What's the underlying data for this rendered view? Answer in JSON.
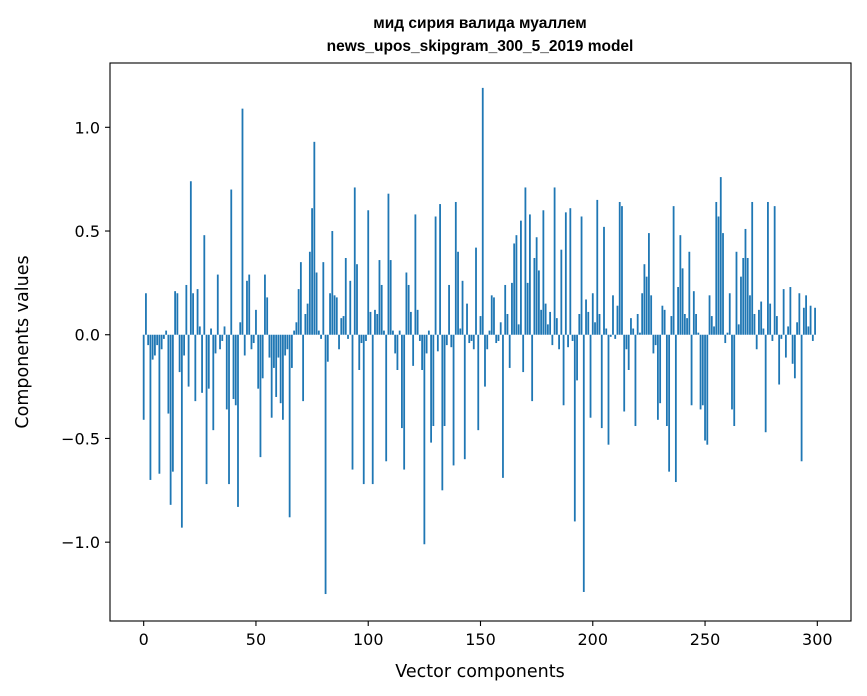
{
  "chart_data": {
    "type": "bar",
    "title_lines": [
      "мид сирия валида муаллем",
      "news_upos_skipgram_300_5_2019 model"
    ],
    "xlabel": "Vector components",
    "ylabel": "Components values",
    "xlim": [
      -15,
      315
    ],
    "ylim": [
      -1.38,
      1.31
    ],
    "xticks": [
      0,
      50,
      100,
      150,
      200,
      250,
      300
    ],
    "xtick_labels": [
      "0",
      "50",
      "100",
      "150",
      "200",
      "250",
      "300"
    ],
    "yticks": [
      -1.0,
      -0.5,
      0.0,
      0.5,
      1.0
    ],
    "ytick_labels": [
      "−1.0",
      "−0.5",
      "0.0",
      "0.5",
      "1.0"
    ],
    "bar_color": "#1f77b4",
    "bar_width": 0.8,
    "values": [
      -0.41,
      0.2,
      -0.05,
      -0.7,
      -0.12,
      -0.1,
      -0.05,
      -0.67,
      -0.07,
      -0.02,
      0.02,
      -0.38,
      -0.82,
      -0.66,
      0.21,
      0.2,
      -0.18,
      -0.93,
      -0.1,
      0.24,
      -0.25,
      0.74,
      0.2,
      -0.32,
      0.22,
      0.04,
      -0.28,
      0.48,
      -0.72,
      -0.26,
      0.03,
      -0.46,
      -0.09,
      0.29,
      -0.07,
      -0.03,
      0.04,
      -0.36,
      -0.72,
      0.7,
      -0.31,
      -0.34,
      -0.83,
      0.06,
      1.09,
      -0.1,
      0.26,
      0.29,
      -0.07,
      -0.04,
      0.12,
      -0.26,
      -0.59,
      -0.21,
      0.29,
      0.18,
      -0.11,
      -0.4,
      -0.16,
      -0.3,
      -0.11,
      -0.33,
      -0.41,
      -0.1,
      -0.07,
      -0.88,
      -0.16,
      0.02,
      0.06,
      0.22,
      0.35,
      -0.32,
      0.1,
      0.15,
      0.4,
      0.61,
      0.93,
      0.3,
      0.02,
      -0.02,
      0.35,
      -1.25,
      -0.13,
      0.2,
      0.5,
      0.19,
      0.18,
      -0.07,
      0.08,
      0.09,
      0.37,
      -0.02,
      0.26,
      -0.65,
      0.71,
      0.34,
      -0.17,
      -0.04,
      -0.72,
      -0.03,
      0.6,
      0.11,
      -0.72,
      0.12,
      0.1,
      0.36,
      0.24,
      0.02,
      -0.61,
      0.68,
      0.36,
      0.02,
      -0.09,
      -0.17,
      0.02,
      -0.45,
      -0.65,
      0.3,
      0.24,
      0.11,
      -0.15,
      0.58,
      0.12,
      -0.03,
      -0.17,
      -1.01,
      -0.09,
      0.02,
      -0.52,
      -0.44,
      0.57,
      -0.08,
      0.63,
      -0.75,
      -0.44,
      -0.05,
      0.24,
      -0.06,
      -0.63,
      0.64,
      0.4,
      0.03,
      0.26,
      -0.6,
      0.15,
      -0.04,
      -0.03,
      -0.07,
      0.42,
      -0.46,
      0.09,
      1.19,
      -0.25,
      -0.07,
      0.02,
      0.19,
      0.18,
      -0.04,
      -0.03,
      0.06,
      -0.69,
      0.24,
      0.1,
      -0.16,
      0.25,
      0.44,
      0.48,
      0.05,
      0.55,
      -0.18,
      0.71,
      0.25,
      0.58,
      -0.32,
      0.37,
      0.47,
      0.31,
      0.12,
      0.6,
      0.15,
      0.05,
      0.11,
      -0.05,
      0.71,
      0.08,
      -0.07,
      0.41,
      -0.34,
      0.59,
      -0.06,
      0.61,
      -0.03,
      -0.9,
      -0.22,
      0.1,
      0.57,
      -1.24,
      0.17,
      0.11,
      -0.4,
      0.2,
      0.06,
      0.65,
      0.1,
      -0.45,
      0.52,
      0.03,
      -0.53,
      -0.01,
      0.19,
      -0.02,
      0.14,
      0.64,
      0.62,
      -0.37,
      -0.07,
      -0.17,
      0.08,
      0.03,
      -0.44,
      0.1,
      0.01,
      0.2,
      0.34,
      0.28,
      0.49,
      0.19,
      -0.09,
      -0.05,
      -0.41,
      -0.33,
      0.14,
      0.12,
      -0.44,
      -0.66,
      0.09,
      0.62,
      -0.71,
      0.23,
      0.48,
      0.32,
      0.1,
      0.08,
      0.4,
      -0.34,
      0.21,
      0.1,
      0.01,
      -0.36,
      -0.34,
      -0.51,
      -0.53,
      0.19,
      0.09,
      0.04,
      0.64,
      0.57,
      0.76,
      0.49,
      -0.04,
      0.01,
      0.2,
      -0.36,
      -0.44,
      0.4,
      0.05,
      0.28,
      0.37,
      0.51,
      0.37,
      0.19,
      0.64,
      0.1,
      -0.07,
      0.12,
      0.16,
      0.03,
      -0.47,
      0.64,
      0.15,
      -0.03,
      0.62,
      0.09,
      -0.24,
      -0.02,
      0.22,
      -0.11,
      0.04,
      0.23,
      -0.14,
      -0.21,
      0.06,
      0.2,
      -0.61,
      0.13,
      0.19,
      0.04,
      0.14,
      -0.03,
      0.13
    ]
  }
}
